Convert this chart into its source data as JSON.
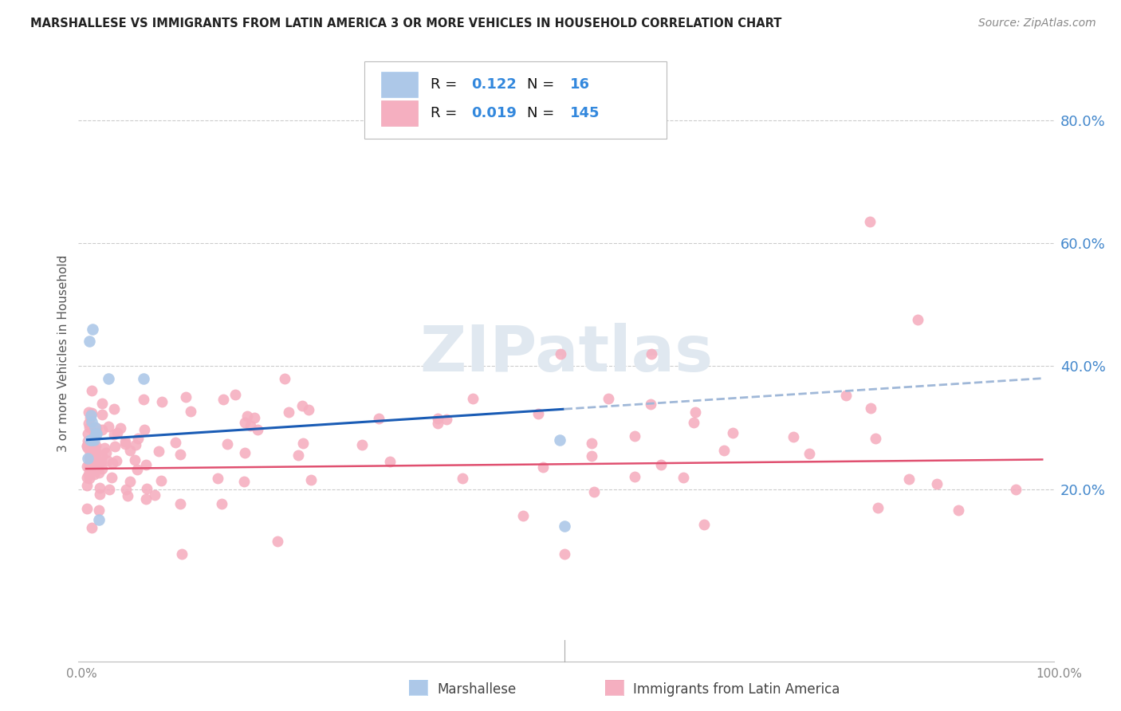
{
  "title": "MARSHALLESE VS IMMIGRANTS FROM LATIN AMERICA 3 OR MORE VEHICLES IN HOUSEHOLD CORRELATION CHART",
  "source": "Source: ZipAtlas.com",
  "ylabel": "3 or more Vehicles in Household",
  "right_yticks": [
    "20.0%",
    "40.0%",
    "60.0%",
    "80.0%"
  ],
  "right_ytick_vals": [
    0.2,
    0.4,
    0.6,
    0.8
  ],
  "marshallese_color": "#adc8e8",
  "latin_color": "#f5afc0",
  "regression_blue": "#1a5cb5",
  "regression_pink": "#e05070",
  "regression_dashed": "#a0b8d8",
  "watermark_color": "#e0e8f0",
  "legend_text_color": "#111111",
  "legend_value_color": "#3388dd",
  "source_color": "#888888",
  "ytick_color": "#4488cc",
  "xtick_color": "#888888",
  "ylabel_color": "#555555",
  "grid_color": "#cccccc"
}
